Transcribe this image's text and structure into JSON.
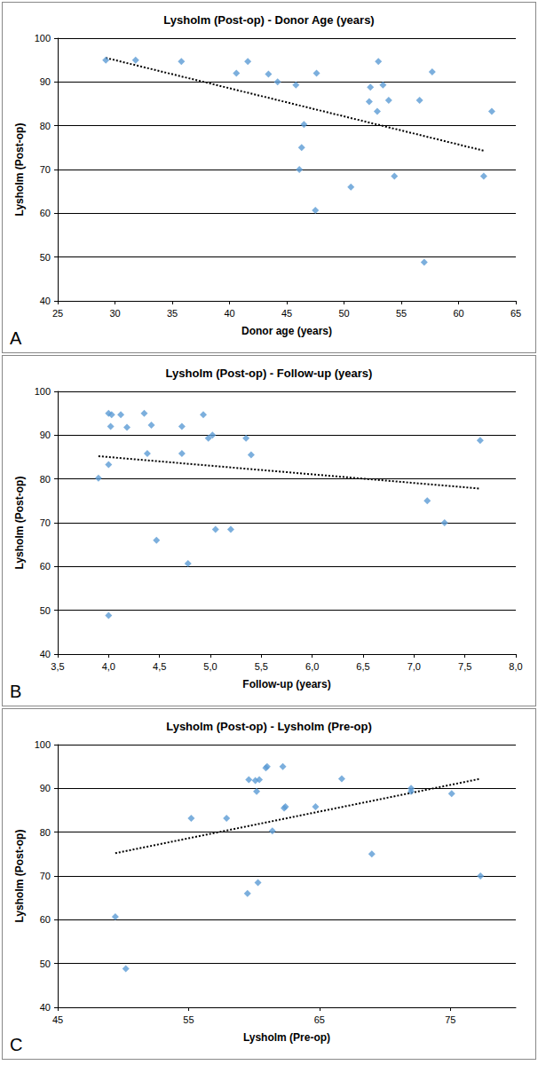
{
  "chart_data": [
    {
      "type": "scatter",
      "title": "Lysholm (Post-op) - Donor Age (years)",
      "x_label": "Donor age (years)",
      "y_label": "Lysholm (Post-op)",
      "annotation": "A",
      "x": [
        29.2,
        31.8,
        35.8,
        40.6,
        41.6,
        43.4,
        44.2,
        45.8,
        46.1,
        46.3,
        46.5,
        47.5,
        47.6,
        50.6,
        52.2,
        52.3,
        52.9,
        53.0,
        53.4,
        53.9,
        54.4,
        56.6,
        57.0,
        57.7,
        62.2,
        62.9
      ],
      "values": [
        95,
        95,
        94.7,
        92,
        94.7,
        91.8,
        90,
        89.3,
        70,
        75,
        80.3,
        60.7,
        92,
        66,
        85.5,
        88.8,
        83.3,
        94.7,
        89.3,
        85.8,
        68.5,
        85.8,
        48.8,
        92.3,
        68.5,
        83.3
      ],
      "color": "#5b9bd5",
      "marker": "diamond",
      "trendline": {
        "type": "line",
        "x": [
          29.2,
          62.2
        ],
        "values": [
          95.5,
          74.3
        ],
        "color": "#000000",
        "line_style": "dotted"
      },
      "xlim": [
        25,
        65
      ],
      "xticks": [
        25,
        30,
        35,
        40,
        45,
        50,
        55,
        60,
        65
      ],
      "ylim": [
        40,
        100
      ],
      "yticks": [
        40,
        50,
        60,
        70,
        80,
        90,
        100
      ],
      "grid": "y"
    },
    {
      "type": "scatter",
      "title": "Lysholm (Post-op) - Follow-up (years)",
      "x_label": "Follow-up (years)",
      "y_label": "Lysholm (Post-op)",
      "annotation": "B",
      "x": [
        3.9,
        4.0,
        4.02,
        4.03,
        4.0,
        4.0,
        4.12,
        4.18,
        4.35,
        4.38,
        4.42,
        4.47,
        4.72,
        4.72,
        4.78,
        4.93,
        4.98,
        5.02,
        5.05,
        5.2,
        5.35,
        5.4,
        7.13,
        7.3,
        7.65
      ],
      "values": [
        80.2,
        95,
        92,
        94.7,
        83.3,
        48.8,
        94.7,
        91.8,
        95,
        85.8,
        92.3,
        66,
        92,
        85.8,
        60.7,
        94.7,
        89.3,
        90,
        68.5,
        68.5,
        89.3,
        85.5,
        75,
        70,
        88.8
      ],
      "color": "#5b9bd5",
      "marker": "diamond",
      "trendline": {
        "type": "line",
        "x": [
          3.9,
          7.65
        ],
        "values": [
          85.2,
          77.8
        ],
        "color": "#000000",
        "line_style": "dotted"
      },
      "xlim": [
        3.5,
        8.0
      ],
      "xticks": [
        {
          "value": 3.5,
          "label": "3,5"
        },
        {
          "value": 4.0,
          "label": "4,0"
        },
        {
          "value": 4.5,
          "label": "4,5"
        },
        {
          "value": 5.0,
          "label": "5,0"
        },
        {
          "value": 5.5,
          "label": "5,5"
        },
        {
          "value": 6.0,
          "label": "6,0"
        },
        {
          "value": 6.5,
          "label": "6,5"
        },
        {
          "value": 7.0,
          "label": "7,0"
        },
        {
          "value": 7.5,
          "label": "7,5"
        },
        {
          "value": 8.0,
          "label": "8,0"
        }
      ],
      "ylim": [
        40,
        100
      ],
      "yticks": [
        40,
        50,
        60,
        70,
        80,
        90,
        100
      ],
      "grid": "y"
    },
    {
      "type": "scatter",
      "title": "Lysholm (Post-op) - Lysholm (Pre-op)",
      "x_label": "Lysholm (Pre-op)",
      "y_label": "Lysholm (Post-op)",
      "annotation": "C",
      "x": [
        49.4,
        50.2,
        55.2,
        57.9,
        59.5,
        59.6,
        60.1,
        60.2,
        60.3,
        60.4,
        60.9,
        61.0,
        61.4,
        62.2,
        62.3,
        62.4,
        64.7,
        66.7,
        69.0,
        72.0,
        72.0,
        75.1,
        77.3
      ],
      "values": [
        60.7,
        48.8,
        83.2,
        83.2,
        66,
        92,
        91.8,
        89.3,
        68.5,
        92,
        94.7,
        95,
        80.3,
        95,
        85.5,
        85.8,
        85.8,
        92.2,
        75,
        89.3,
        90,
        88.8,
        70
      ],
      "color": "#5b9bd5",
      "marker": "diamond",
      "trendline": {
        "type": "line",
        "x": [
          49.4,
          77.3
        ],
        "values": [
          75.2,
          92.2
        ],
        "color": "#000000",
        "line_style": "dotted"
      },
      "xlim": [
        45,
        80
      ],
      "xticks": [
        45,
        55,
        65,
        75
      ],
      "ylim": [
        40,
        100
      ],
      "yticks": [
        40,
        50,
        60,
        70,
        80,
        90,
        100
      ],
      "grid": "y"
    }
  ]
}
